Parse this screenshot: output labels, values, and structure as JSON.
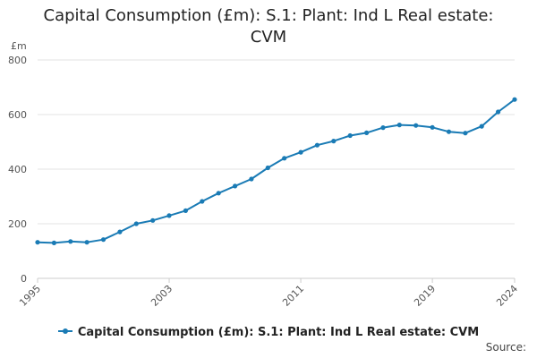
{
  "chart_data": {
    "type": "line",
    "title_lines": [
      "Capital Consumption (£m): S.1: Plant: Ind L Real estate:",
      "CVM"
    ],
    "unit_label": "£m",
    "xlabel": "",
    "ylabel": "£m",
    "ylim": [
      0,
      800
    ],
    "yticks": [
      0,
      200,
      400,
      600,
      800
    ],
    "xticks": [
      1995,
      2003,
      2011,
      2019,
      2024
    ],
    "x": [
      1995,
      1996,
      1997,
      1998,
      1999,
      2000,
      2001,
      2002,
      2003,
      2004,
      2005,
      2006,
      2007,
      2008,
      2009,
      2010,
      2011,
      2012,
      2013,
      2014,
      2015,
      2016,
      2017,
      2018,
      2019,
      2020,
      2021,
      2022,
      2023,
      2024
    ],
    "series": [
      {
        "name": "Capital Consumption (£m): S.1: Plant: Ind L Real estate: CVM",
        "color": "#1a7bb5",
        "values": [
          132,
          130,
          135,
          132,
          142,
          170,
          200,
          212,
          230,
          248,
          282,
          312,
          338,
          364,
          405,
          440,
          462,
          488,
          503,
          523,
          533,
          552,
          562,
          560,
          553,
          537,
          532,
          557,
          610,
          655
        ]
      }
    ],
    "grid": true,
    "legend": "bottom-center"
  },
  "footer": {
    "source_label": "Source:"
  }
}
